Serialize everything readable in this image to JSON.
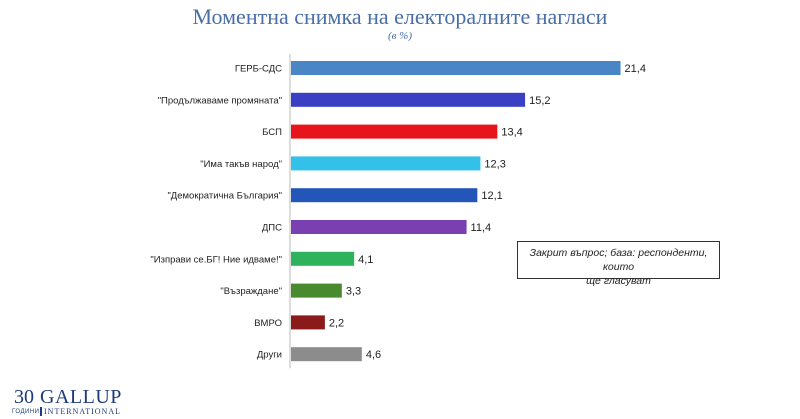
{
  "header": {
    "title": "Моментна снимка на електоралните нагласи",
    "subtitle": "(в %)"
  },
  "note": {
    "line1": "Закрит въпрос; база: респонденти, които",
    "line2": "ще гласуват"
  },
  "logo": {
    "number": "30",
    "years": "ГОДИНИ",
    "brand": "GALLUP",
    "sub": "INTERNATIONAL"
  },
  "chart_data": {
    "type": "bar",
    "orientation": "horizontal",
    "title": "Моментна снимка на електоралните нагласи",
    "subtitle": "(в %)",
    "categories": [
      "ГЕРБ-СДС",
      "\"Продължаваме промяната\"",
      "БСП",
      "\"Има такъв народ\"",
      "\"Демократична България\"",
      "ДПС",
      "\"Изправи се.БГ! Ние идваме!\"",
      "\"Възраждане\"",
      "ВМРО",
      "Други"
    ],
    "values": [
      21.4,
      15.2,
      13.4,
      12.3,
      12.1,
      11.4,
      4.1,
      3.3,
      2.2,
      4.6
    ],
    "value_labels": [
      "21,4",
      "15,2",
      "13,4",
      "12,3",
      "12,1",
      "11,4",
      "4,1",
      "3,3",
      "2,2",
      "4,6"
    ],
    "colors": [
      "#4a86c5",
      "#3a3fc4",
      "#e8141c",
      "#33c1ea",
      "#2356b8",
      "#7a3fb0",
      "#2eb35c",
      "#4a8a2e",
      "#8b1a1a",
      "#8c8c8c"
    ],
    "xlim": [
      0,
      22
    ],
    "grid": false,
    "legend": "none"
  }
}
